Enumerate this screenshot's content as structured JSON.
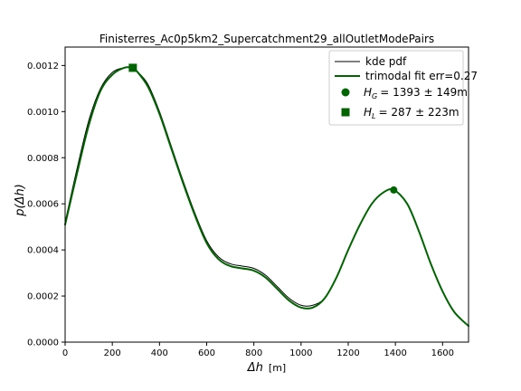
{
  "chart_data": {
    "type": "line",
    "title": "Finisterres_Ac0p5km2_Supercatchment29_allOutletModePairs",
    "xlabel_symbol": "Δh",
    "xlabel_unit": "[m]",
    "ylabel_p": "p",
    "ylabel_arg": "(Δh)",
    "xlim": [
      0,
      1710
    ],
    "ylim": [
      0,
      0.00128
    ],
    "xticks": [
      0,
      200,
      400,
      600,
      800,
      1000,
      1200,
      1400,
      1600
    ],
    "xtick_labels": [
      "0",
      "200",
      "400",
      "600",
      "800",
      "1000",
      "1200",
      "1400",
      "1600"
    ],
    "yticks": [
      0,
      0.0002,
      0.0004,
      0.0006,
      0.0008,
      0.001,
      0.0012
    ],
    "ytick_labels": [
      "0.0000",
      "0.0002",
      "0.0004",
      "0.0006",
      "0.0008",
      "0.0010",
      "0.0012"
    ],
    "grid": false,
    "legend_position": "top-right",
    "series": [
      {
        "name": "kde pdf",
        "color": "#000000",
        "x": [
          0,
          50,
          100,
          150,
          200,
          250,
          287,
          300,
          350,
          400,
          450,
          500,
          550,
          600,
          650,
          700,
          750,
          800,
          850,
          900,
          950,
          1000,
          1050,
          1100,
          1150,
          1200,
          1250,
          1300,
          1350,
          1393,
          1450,
          1500,
          1550,
          1600,
          1650,
          1710
        ],
        "y": [
          0.00052,
          0.00075,
          0.00096,
          0.0011,
          0.00117,
          0.00119,
          0.00119,
          0.00118,
          0.00112,
          0.001,
          0.00085,
          0.0007,
          0.00056,
          0.00044,
          0.00037,
          0.00034,
          0.00033,
          0.00032,
          0.00029,
          0.00024,
          0.00019,
          0.00016,
          0.00016,
          0.00019,
          0.00028,
          0.0004,
          0.00051,
          0.0006,
          0.00065,
          0.00066,
          0.0006,
          0.00048,
          0.00034,
          0.00022,
          0.00013,
          7e-05
        ]
      },
      {
        "name": "trimodal fit err=0.27",
        "color": "#006400",
        "x": [
          0,
          50,
          100,
          150,
          200,
          250,
          287,
          300,
          350,
          400,
          450,
          500,
          550,
          600,
          650,
          700,
          750,
          800,
          850,
          900,
          950,
          1000,
          1050,
          1100,
          1150,
          1200,
          1250,
          1300,
          1350,
          1393,
          1450,
          1500,
          1550,
          1600,
          1650,
          1710
        ],
        "y": [
          0.00051,
          0.00073,
          0.00094,
          0.00109,
          0.00116,
          0.00119,
          0.00119,
          0.00118,
          0.00111,
          0.00099,
          0.00084,
          0.00069,
          0.00055,
          0.00043,
          0.00036,
          0.00033,
          0.00032,
          0.00031,
          0.00028,
          0.00023,
          0.00018,
          0.00015,
          0.00015,
          0.00019,
          0.00028,
          0.0004,
          0.00051,
          0.0006,
          0.00065,
          0.00066,
          0.0006,
          0.00048,
          0.00034,
          0.00022,
          0.00013,
          7e-05
        ]
      }
    ],
    "markers": [
      {
        "shape": "circle",
        "color": "#006400",
        "x": 1393,
        "y": 0.00066,
        "label_sym": "H",
        "label_sub": "G",
        "label_rest": "= 1393 ± 149m"
      },
      {
        "shape": "square",
        "color": "#006400",
        "x": 287,
        "y": 0.00119,
        "label_sym": "H",
        "label_sub": "L",
        "label_rest": "= 287 ± 223m"
      }
    ]
  }
}
